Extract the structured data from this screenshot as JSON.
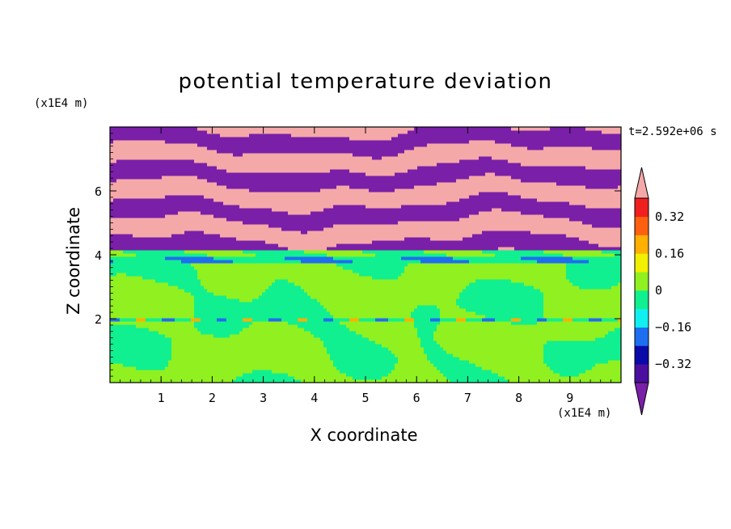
{
  "chart_data": {
    "type": "heatmap",
    "title": "potential temperature deviation",
    "xlabel": "X coordinate",
    "ylabel": "Z coordinate",
    "x_unit": "(x1E4 m)",
    "y_unit": "(x1E4 m)",
    "time_label": "t=2.592e+06 s",
    "xlim": [
      0,
      10
    ],
    "ylim": [
      0,
      8
    ],
    "x_ticks": [
      "1",
      "2",
      "3",
      "4",
      "5",
      "6",
      "7",
      "8",
      "9"
    ],
    "y_ticks": [
      "2",
      "4",
      "6"
    ],
    "levels": [
      -0.4,
      -0.32,
      -0.24,
      -0.16,
      -0.08,
      0,
      0.08,
      0.16,
      0.24,
      0.32,
      0.4
    ],
    "colorbar_labels": [
      "0.32",
      "0.16",
      "0",
      "-0.16",
      "-0.32"
    ],
    "colors": {
      "below_min": "#7a1fa8",
      "bands": [
        "#4b0fa0",
        "#0a0aa8",
        "#1e6ef0",
        "#10f0f0",
        "#10f090",
        "#90f020",
        "#f0f000",
        "#ffb000",
        "#ff6010",
        "#f02020"
      ],
      "above_max": "#f5a8a8"
    },
    "regions": [
      {
        "z_range": [
          0,
          1.9
        ],
        "dominant": "0.04",
        "secondary": "-0.04"
      },
      {
        "z_range": [
          1.9,
          2.05
        ],
        "dominant": "-0.04",
        "secondary": "0.2"
      },
      {
        "z_range": [
          2.05,
          3.7
        ],
        "dominant": "0.04",
        "secondary": "-0.04"
      },
      {
        "z_range": [
          3.7,
          4.2
        ],
        "dominant": "-0.04",
        "secondary": "-0.2"
      },
      {
        "z_range": [
          4.2,
          8
        ],
        "dominant": "0.45",
        "secondary": "-0.45"
      }
    ]
  }
}
